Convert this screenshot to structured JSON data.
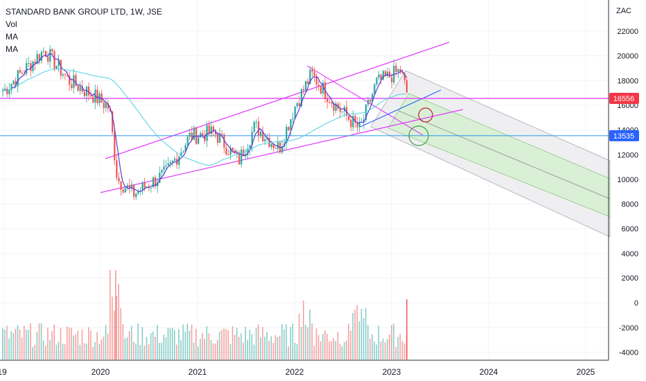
{
  "legend": {
    "title": "STANDARD BANK GROUP LTD, 1W, JSE",
    "vol": "Vol",
    "ma1": "MA",
    "ma2": "MA"
  },
  "chart_data": {
    "type": "candlestick",
    "currency_label": "ZAC",
    "y_ticks": [
      "22000",
      "20000",
      "18000",
      "16000",
      "14000",
      "12000",
      "10000",
      "8000",
      "6000",
      "4000",
      "2000",
      "0",
      "-2000",
      "-4000"
    ],
    "x_ticks": [
      "19",
      "2020",
      "2021",
      "2022",
      "2023",
      "2024",
      "2025"
    ],
    "price_badges": [
      {
        "value": "16556",
        "color": "#f23645"
      },
      {
        "value": "13535",
        "color": "#2962ff"
      }
    ],
    "horizontal_lines": [
      {
        "value": 16556,
        "color": "#e040fb",
        "style": "solid"
      },
      {
        "value": 13535,
        "color": "#2196f3",
        "style": "solid"
      }
    ],
    "price_path_approx": [
      {
        "date": "2019-01",
        "price": 17200
      },
      {
        "date": "2019-06",
        "price": 20500
      },
      {
        "date": "2019-09",
        "price": 18000
      },
      {
        "date": "2019-12",
        "price": 16800
      },
      {
        "date": "2020-02",
        "price": 15800
      },
      {
        "date": "2020-03",
        "price": 10000
      },
      {
        "date": "2020-05",
        "price": 8800
      },
      {
        "date": "2020-09",
        "price": 10500
      },
      {
        "date": "2020-12",
        "price": 13500
      },
      {
        "date": "2021-03",
        "price": 13800
      },
      {
        "date": "2021-06",
        "price": 11500
      },
      {
        "date": "2021-08",
        "price": 14300
      },
      {
        "date": "2021-11",
        "price": 12500
      },
      {
        "date": "2022-01",
        "price": 16000
      },
      {
        "date": "2022-03",
        "price": 18500
      },
      {
        "date": "2022-06",
        "price": 16000
      },
      {
        "date": "2022-09",
        "price": 14000
      },
      {
        "date": "2022-11",
        "price": 17800
      },
      {
        "date": "2023-02",
        "price": 18800
      },
      {
        "date": "2023-03",
        "price": 16556
      }
    ],
    "moving_averages": [
      "MA",
      "MA"
    ],
    "volume": "Vol",
    "drawings": [
      "rising channel",
      "descending pitchfork channel",
      "trendlines",
      "circle markers"
    ]
  }
}
